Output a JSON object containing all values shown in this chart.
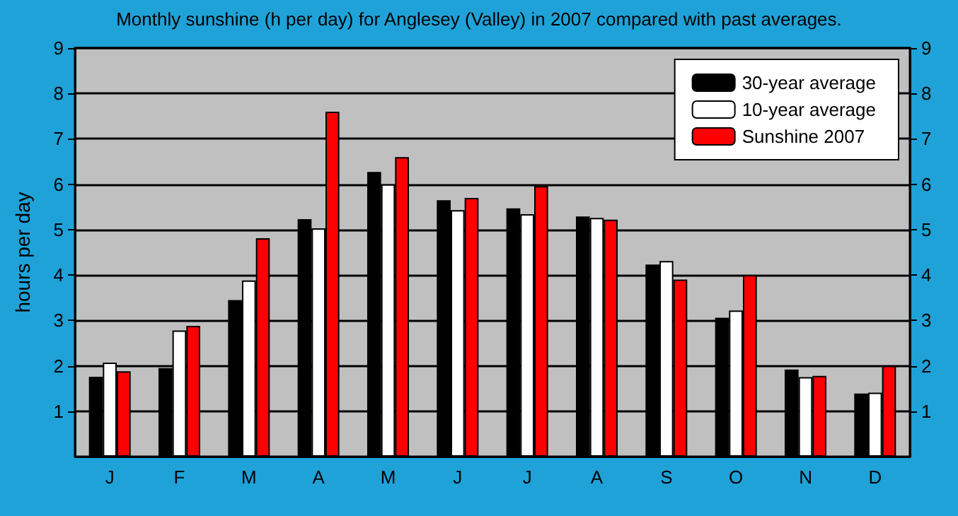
{
  "chart_data": {
    "type": "bar",
    "title": "Monthly sunshine (h per day) for Anglesey (Valley) in 2007 compared with past averages.",
    "ylabel": "hours per day",
    "categories": [
      "J",
      "F",
      "M",
      "A",
      "M",
      "J",
      "J",
      "A",
      "S",
      "O",
      "N",
      "D"
    ],
    "series": [
      {
        "name": "30-year average",
        "color": "#000000",
        "values": [
          1.76,
          1.95,
          3.45,
          5.23,
          6.27,
          5.65,
          5.47,
          5.29,
          4.23,
          3.06,
          1.92,
          1.39
        ]
      },
      {
        "name": "10-year average",
        "color": "#ffffff",
        "values": [
          2.07,
          2.78,
          3.88,
          5.03,
          6.0,
          5.43,
          5.34,
          5.26,
          4.31,
          3.22,
          1.75,
          1.41
        ]
      },
      {
        "name": "Sunshine 2007",
        "color": "#ff0000",
        "values": [
          1.88,
          2.88,
          4.81,
          7.6,
          6.6,
          5.7,
          5.96,
          5.22,
          3.9,
          4.0,
          1.78,
          2.0
        ]
      }
    ],
    "ylim": [
      0,
      9
    ],
    "yticks": [
      1,
      2,
      3,
      4,
      5,
      6,
      7,
      8,
      9
    ],
    "y2lim": [
      0,
      9
    ],
    "y2ticks": [
      1,
      2,
      3,
      4,
      5,
      6,
      7,
      8,
      9
    ],
    "grid": "y",
    "legend": "top right"
  }
}
